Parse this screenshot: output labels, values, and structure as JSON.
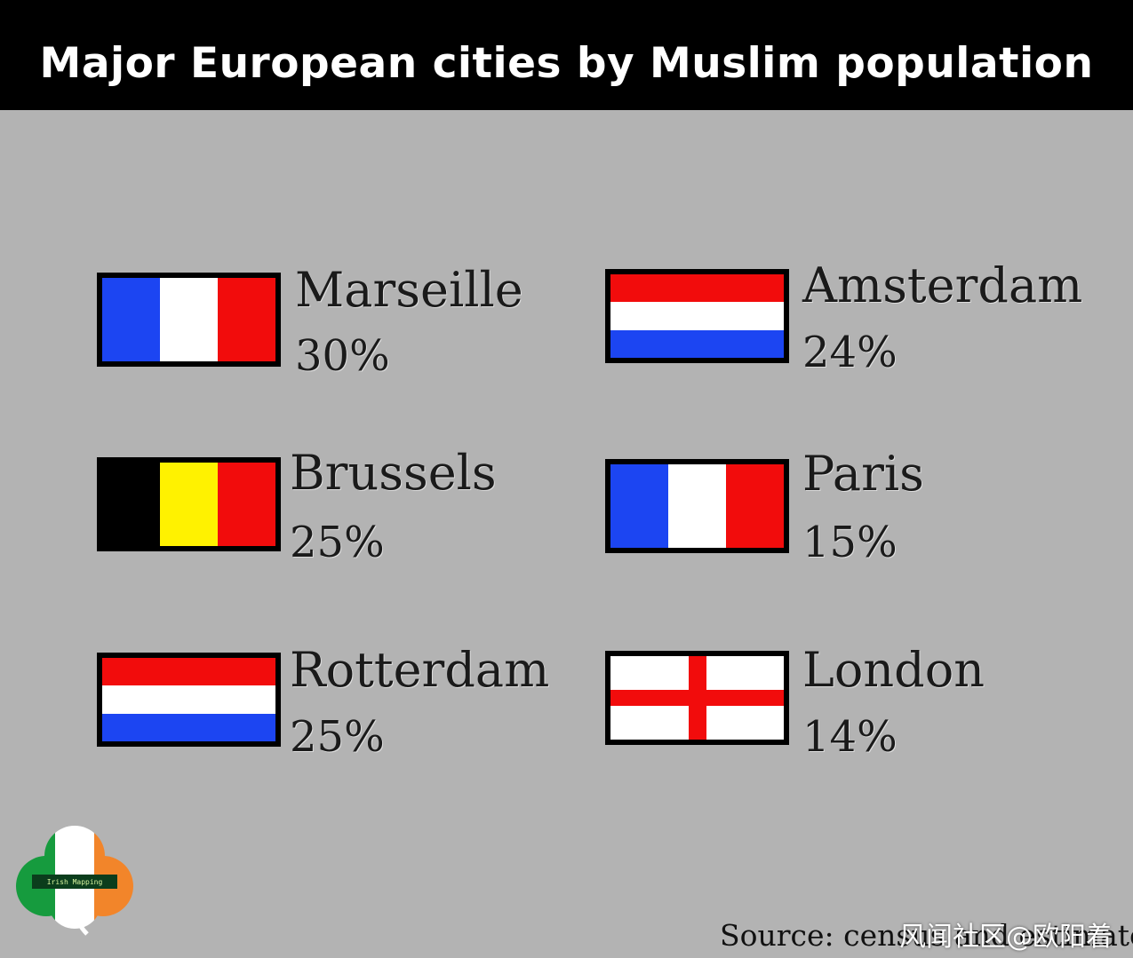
{
  "header": {
    "title": "Major European cities by Muslim population"
  },
  "cities": [
    {
      "name": "Marseille",
      "percent": "30%",
      "flag": "france"
    },
    {
      "name": "Amsterdam",
      "percent": "24%",
      "flag": "netherlands"
    },
    {
      "name": "Brussels",
      "percent": "25%",
      "flag": "belgium"
    },
    {
      "name": "Paris",
      "percent": "15%",
      "flag": "france"
    },
    {
      "name": "Rotterdam",
      "percent": "25%",
      "flag": "netherlands"
    },
    {
      "name": "London",
      "percent": "14%",
      "flag": "england"
    }
  ],
  "colors": {
    "blue": "#1c45f2",
    "white": "#ffffff",
    "red": "#f20c0c",
    "black": "#000000",
    "yellow": "#fff200",
    "background": "#b3b3b3"
  },
  "footer": {
    "logo_text": "Irish Mapping",
    "source": "Source: census and estimates",
    "watermark": "风闻社区@欧阳着"
  }
}
